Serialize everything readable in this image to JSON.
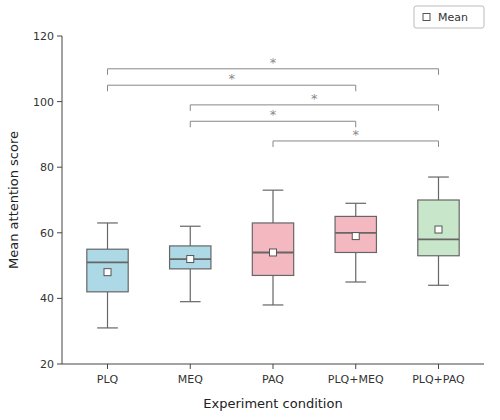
{
  "chart_data": {
    "type": "box",
    "categories": [
      "PLQ",
      "MEQ",
      "PAQ",
      "PLQ+MEQ",
      "PLQ+PAQ"
    ],
    "boxes": [
      {
        "whislo": 31,
        "q1": 42,
        "med": 51,
        "q3": 55,
        "whishi": 63,
        "mean": 48
      },
      {
        "whislo": 39,
        "q1": 49,
        "med": 52,
        "q3": 56,
        "whishi": 62,
        "mean": 52
      },
      {
        "whislo": 38,
        "q1": 47,
        "med": 54,
        "q3": 63,
        "whishi": 73,
        "mean": 54
      },
      {
        "whislo": 45,
        "q1": 54,
        "med": 60,
        "q3": 65,
        "whishi": 69,
        "mean": 59
      },
      {
        "whislo": 44,
        "q1": 53,
        "med": 58,
        "q3": 70,
        "whishi": 77,
        "mean": 61
      }
    ],
    "colors": [
      "#add8e6",
      "#add8e6",
      "#f4b8c1",
      "#f4b8c1",
      "#c8e6c9"
    ],
    "brackets": [
      {
        "x1": 0,
        "x2": 4,
        "y": 110,
        "label": "*"
      },
      {
        "x1": 0,
        "x2": 3,
        "y": 105,
        "label": "*"
      },
      {
        "x1": 1,
        "x2": 4,
        "y": 99,
        "label": "*"
      },
      {
        "x1": 1,
        "x2": 3,
        "y": 94,
        "label": "*"
      },
      {
        "x1": 2,
        "x2": 4,
        "y": 88,
        "label": "*"
      }
    ],
    "mean_label": "Mean",
    "legend": "upper right",
    "grid": false,
    "ylim": [
      20,
      120
    ],
    "yticks": [
      20,
      40,
      60,
      80,
      100,
      120
    ],
    "xlabel": "Experiment condition",
    "ylabel": "Mean attention score"
  }
}
